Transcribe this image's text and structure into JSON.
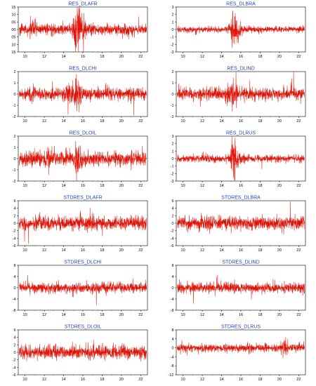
{
  "figure": {
    "series_color": "#e8140a",
    "dark_series_color": "#6b1d00",
    "title_color": "#1f3fbf",
    "frame_color": "#000000"
  },
  "chart_data": [
    {
      "type": "line",
      "title": "RES_DLAFR",
      "xlim": [
        9.3,
        22.7
      ],
      "xticks": [
        "10",
        "12",
        "14",
        "16",
        "18",
        "20",
        "22"
      ],
      "ylim": [
        -15,
        15
      ],
      "yticks": [
        "15",
        "10",
        "05",
        "00",
        "05",
        "10",
        "15"
      ],
      "grid": false,
      "amplitude": 2.0,
      "bursts": [
        {
          "x": 15.4,
          "amp": 4.5
        },
        {
          "x": 16.0,
          "amp": 2.2
        },
        {
          "x": 10.9,
          "amp": 1.6
        }
      ]
    },
    {
      "type": "line",
      "title": "RES_DLBRA",
      "xlim": [
        9.3,
        22.7
      ],
      "xticks": [
        "10",
        "12",
        "14",
        "16",
        "18",
        "20",
        "22"
      ],
      "ylim": [
        -3,
        3
      ],
      "yticks": [
        "3",
        "2",
        "1",
        "0",
        "-1",
        "-2",
        "-3"
      ],
      "grid": false,
      "amplitude": 0.22,
      "bursts": [
        {
          "x": 15.3,
          "amp": 8.0
        },
        {
          "x": 16.0,
          "amp": 2.0
        }
      ]
    },
    {
      "type": "line",
      "title": "RES_DLCHI",
      "xlim": [
        9.3,
        22.7
      ],
      "xticks": [
        "10",
        "12",
        "14",
        "16",
        "18",
        "20",
        "22"
      ],
      "ylim": [
        -2,
        2
      ],
      "yticks": [
        "2",
        "1",
        "0",
        "-1",
        "-2"
      ],
      "grid": false,
      "amplitude": 0.28,
      "bursts": [
        {
          "x": 15.4,
          "amp": 3.5
        },
        {
          "x": 14.6,
          "amp": 2.2
        },
        {
          "x": 10.7,
          "amp": 1.8
        }
      ]
    },
    {
      "type": "line",
      "title": "RES_DLIND",
      "xlim": [
        9.3,
        22.7
      ],
      "xticks": [
        "10",
        "12",
        "14",
        "16",
        "18",
        "20",
        "22"
      ],
      "ylim": [
        -2,
        2
      ],
      "yticks": [
        "2",
        "1",
        "0",
        "-1",
        "-2"
      ],
      "grid": false,
      "amplitude": 0.3,
      "bursts": [
        {
          "x": 15.3,
          "amp": 3.0
        },
        {
          "x": 14.5,
          "amp": 1.8
        }
      ]
    },
    {
      "type": "line",
      "title": "RES_DLOIL",
      "xlim": [
        9.3,
        22.7
      ],
      "xticks": [
        "10",
        "12",
        "14",
        "16",
        "18",
        "20",
        "22"
      ],
      "ylim": [
        -2,
        2
      ],
      "yticks": [
        "2",
        "1",
        "0",
        "-1",
        "-2"
      ],
      "grid": false,
      "amplitude": 0.35,
      "bursts": [
        {
          "x": 15.5,
          "amp": 3.0
        },
        {
          "x": 12.4,
          "amp": 1.7
        }
      ]
    },
    {
      "type": "line",
      "title": "RES_DLRUS",
      "xlim": [
        9.3,
        22.7
      ],
      "xticks": [
        "10",
        "12",
        "14",
        "16",
        "18",
        "20",
        "22"
      ],
      "ylim": [
        -3,
        3
      ],
      "yticks": [
        "3",
        "2",
        "1",
        "0",
        "-1",
        "-2",
        "-3"
      ],
      "grid": false,
      "amplitude": 0.25,
      "bursts": [
        {
          "x": 15.3,
          "amp": 7.0
        },
        {
          "x": 16.1,
          "amp": 2.0
        }
      ]
    },
    {
      "type": "line",
      "title": "STDRES_DLAFR",
      "xlim": [
        9.3,
        22.7
      ],
      "xticks": [
        "10",
        "12",
        "14",
        "16",
        "18",
        "20",
        "22"
      ],
      "ylim": [
        -6,
        6
      ],
      "yticks": [
        "6",
        "4",
        "2",
        "0",
        "-2",
        "-4",
        "-6"
      ],
      "grid": false,
      "amplitude": 1.0,
      "bursts": []
    },
    {
      "type": "line",
      "title": "STDRES_DLBRA",
      "xlim": [
        9.3,
        22.7
      ],
      "xticks": [
        "10",
        "12",
        "14",
        "16",
        "18",
        "20",
        "22"
      ],
      "ylim": [
        -6,
        6
      ],
      "yticks": [
        "6",
        "4",
        "2",
        "0",
        "-2",
        "-4",
        "-6"
      ],
      "grid": false,
      "amplitude": 1.0,
      "bursts": []
    },
    {
      "type": "line",
      "title": "STDRES_DLCHI",
      "xlim": [
        9.3,
        22.7
      ],
      "xticks": [
        "10",
        "12",
        "14",
        "16",
        "18",
        "20",
        "22"
      ],
      "ylim": [
        -8,
        8
      ],
      "yticks": [
        "8",
        "4",
        "0",
        "-4",
        "-8"
      ],
      "grid": false,
      "amplitude": 1.0,
      "bursts": []
    },
    {
      "type": "line",
      "title": "STDRES_DLIND",
      "xlim": [
        9.3,
        22.7
      ],
      "xticks": [
        "10",
        "12",
        "14",
        "16",
        "18",
        "20",
        "22"
      ],
      "ylim": [
        -8,
        8
      ],
      "yticks": [
        "8",
        "4",
        "0",
        "-4",
        "-8"
      ],
      "grid": false,
      "amplitude": 1.0,
      "bursts": []
    },
    {
      "type": "line",
      "title": "STDRES_DLOIL",
      "xlim": [
        9.3,
        22.7
      ],
      "xticks": [
        "10",
        "12",
        "14",
        "16",
        "18",
        "20",
        "22"
      ],
      "ylim": [
        -6,
        6
      ],
      "yticks": [
        "6",
        "4",
        "2",
        "0",
        "-2",
        "-4",
        "-6"
      ],
      "grid": false,
      "amplitude": 1.0,
      "bursts": []
    },
    {
      "type": "line",
      "title": "STDRES_DLRUS",
      "xlim": [
        9.3,
        22.7
      ],
      "xticks": [
        "10",
        "12",
        "14",
        "16",
        "18",
        "20",
        "22"
      ],
      "ylim": [
        -12,
        8
      ],
      "yticks": [
        "8",
        "4",
        "0",
        "-4",
        "-8",
        "-12"
      ],
      "grid": false,
      "amplitude": 1.0,
      "bursts": [
        {
          "x": 20.6,
          "amp": 2.5
        }
      ]
    }
  ]
}
